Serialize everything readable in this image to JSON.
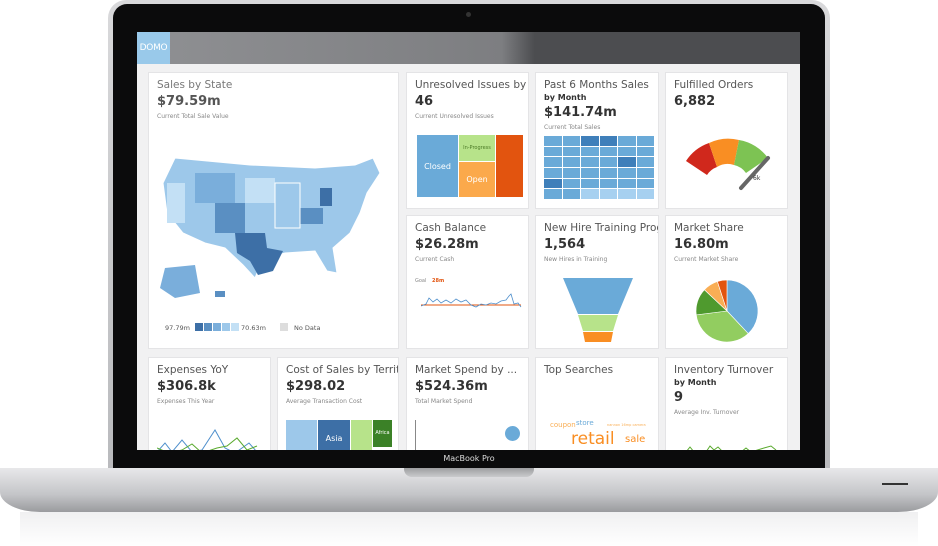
{
  "device_label": "MacBook Pro",
  "app": {
    "logo": "DOMO"
  },
  "cards": {
    "sales_by_state": {
      "title": "Sales by State",
      "value": "$79.59m",
      "caption": "Current Total Sale Value",
      "legend_max": "97.79m",
      "legend_min": "70.63m",
      "no_data": "No Data",
      "scale_colors": [
        "#3d6fa6",
        "#5a8fc2",
        "#7aaedb",
        "#9dc8ea",
        "#c3e0f5"
      ]
    },
    "unresolved": {
      "title": "Unresolved Issues by T...",
      "value": "46",
      "caption": "Current Unresolved Issues",
      "segments": [
        {
          "label": "Closed",
          "color": "#6aaad8"
        },
        {
          "label": "In-Progress",
          "color": "#b7e38a"
        },
        {
          "label": "Open",
          "color": "#fba94b"
        },
        {
          "label": "",
          "color": "#e2540f"
        }
      ]
    },
    "past6": {
      "title": "Past 6 Months Sales",
      "subtitle": "by Month",
      "value": "$141.74m",
      "caption": "Current Total Sales"
    },
    "fulfilled": {
      "title": "Fulfilled Orders",
      "value": "6,882",
      "gauge_label": "6k",
      "gauge_colors": [
        "#d0281c",
        "#f98e23",
        "#7dc353"
      ]
    },
    "cash": {
      "title": "Cash Balance",
      "value": "$26.28m",
      "caption": "Current Cash",
      "goal_label": "Goal",
      "goal_value": "28m"
    },
    "new_hire": {
      "title": "New Hire Training Prog...",
      "value": "1,564",
      "caption": "New Hires in Training"
    },
    "market_share": {
      "title": "Market Share",
      "value": "16.80m",
      "caption": "Current Market Share",
      "slices": [
        {
          "pct": 38,
          "color": "#6aaad8"
        },
        {
          "pct": 35,
          "color": "#92cd60"
        },
        {
          "pct": 14,
          "color": "#4f9a2e"
        },
        {
          "pct": 8,
          "color": "#f9ae55"
        },
        {
          "pct": 5,
          "color": "#e2540f"
        }
      ]
    },
    "expenses": {
      "title": "Expenses YoY",
      "value": "$306.8k",
      "caption": "Expenses This Year"
    },
    "cost_sales": {
      "title": "Cost of Sales by Territory",
      "value": "$298.02",
      "caption": "Average Transaction Cost",
      "labels": [
        "Asia",
        "Africa"
      ]
    },
    "market_spend": {
      "title": "Market Spend by ...",
      "value": "$524.36m",
      "caption": "Total Market Spend"
    },
    "top_searches": {
      "title": "Top Searches",
      "words": [
        "coupon",
        "store",
        "retail",
        "sale",
        "nannon 16mp camera"
      ]
    },
    "inventory": {
      "title": "Inventory Turnover",
      "subtitle": "by Month",
      "value": "9",
      "caption": "Average Inv. Turnover"
    }
  }
}
